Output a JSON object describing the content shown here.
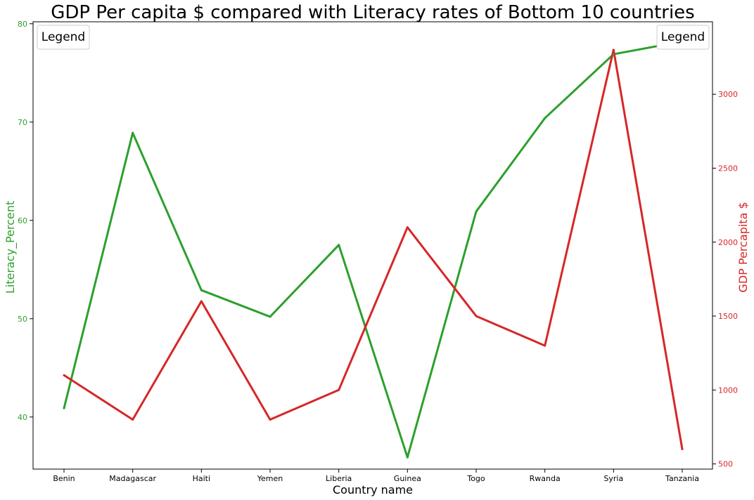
{
  "chart_data": {
    "type": "line",
    "title": "GDP Per capita $ compared with Literacy rates of Bottom 10 countries",
    "xlabel": "Country name",
    "categories": [
      "Benin",
      "Madagascar",
      "Haiti",
      "Yemen",
      "Liberia",
      "Guinea",
      "Togo",
      "Rwanda",
      "Syria",
      "Tanzania"
    ],
    "y_left": {
      "label": "Literacy_Percent",
      "color": "#2ca02c",
      "ylim": [
        34.7,
        80.2
      ],
      "ticks": [
        40,
        50,
        60,
        70,
        80
      ]
    },
    "y_right": {
      "label": "GDP Percapita $",
      "color": "#d62728",
      "ylim": [
        465,
        3490
      ],
      "ticks": [
        500,
        1000,
        1500,
        2000,
        2500,
        3000
      ]
    },
    "series": [
      {
        "axis": "left",
        "color": "#2ca02c",
        "values": [
          40.9,
          68.9,
          52.9,
          50.2,
          57.5,
          35.9,
          60.9,
          70.4,
          76.9,
          78.2
        ]
      },
      {
        "axis": "right",
        "color": "#d62728",
        "values": [
          1100,
          800,
          1600,
          800,
          1000,
          2100,
          1500,
          1300,
          3300,
          600
        ]
      }
    ],
    "legends": [
      {
        "position": "top-left",
        "text": "Legend"
      },
      {
        "position": "top-right",
        "text": "Legend"
      }
    ]
  }
}
